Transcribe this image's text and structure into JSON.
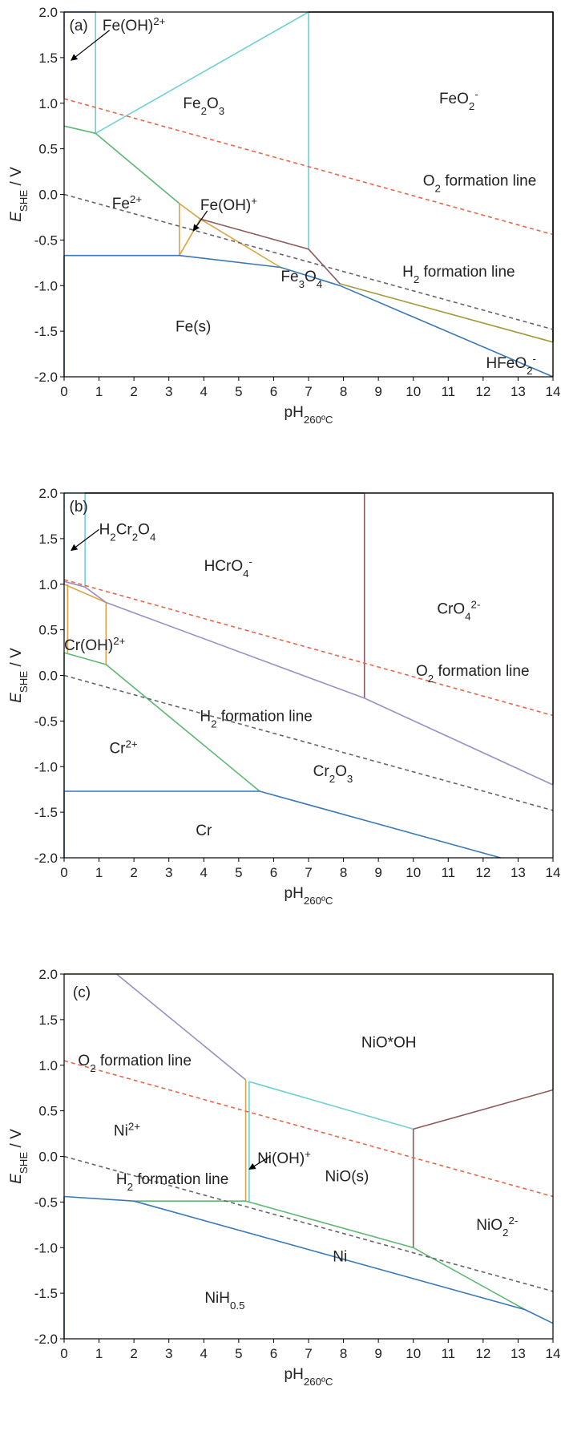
{
  "colors": {
    "blue": "#3a78b5",
    "green": "#5db873",
    "cyan": "#6fd0d3",
    "gold": "#d9a441",
    "brown": "#8b5a5a",
    "olive": "#a39a3c",
    "purple": "#9a8fc7",
    "o2": "#e8674a",
    "h2": "#666666"
  },
  "chart_data": [
    {
      "type": "line",
      "title": "",
      "panel_label": "(a)",
      "xlabel": "pH",
      "xlabel_sub": "260ºC",
      "ylabel": "E",
      "ylabel_sub": "SHE",
      "ylabel_unit": " / V",
      "xlim": [
        0,
        14
      ],
      "ylim": [
        -2,
        2
      ],
      "xticks": [
        "0",
        "1",
        "2",
        "3",
        "4",
        "5",
        "6",
        "7",
        "8",
        "9",
        "10",
        "11",
        "12",
        "13",
        "14"
      ],
      "yticks": [
        "-2.0",
        "-1.5",
        "-1.0",
        "-0.5",
        "0.0",
        "0.5",
        "1.0",
        "1.5",
        "2.0"
      ],
      "series": [
        {
          "color": "cyan",
          "x": [
            0,
            0.9,
            0.9,
            7.0,
            7.0
          ],
          "y": [
            2.0,
            2.0,
            0.67,
            2.0,
            -0.6
          ]
        },
        {
          "color": "purple",
          "x": [
            0,
            0,
            0.9
          ],
          "y": [
            1.05,
            2.0,
            2.0
          ]
        },
        {
          "color": "green",
          "x": [
            0,
            0.9,
            3.3,
            3.3
          ],
          "y": [
            0.75,
            0.67,
            -0.1,
            -0.1
          ]
        },
        {
          "color": "gold",
          "x": [
            3.3,
            3.3,
            3.9,
            6.2,
            6.2
          ],
          "y": [
            -0.1,
            -0.67,
            -0.27,
            -0.8,
            -0.8
          ]
        },
        {
          "color": "gold",
          "x": [
            3.3,
            3.9
          ],
          "y": [
            -0.1,
            -0.27
          ]
        },
        {
          "color": "brown",
          "x": [
            3.9,
            7.0,
            7.9
          ],
          "y": [
            -0.27,
            -0.6,
            -0.98
          ]
        },
        {
          "color": "olive",
          "x": [
            7.9,
            14.0,
            14.0
          ],
          "y": [
            -0.98,
            -1.62,
            -2.0
          ]
        },
        {
          "color": "blue",
          "x": [
            0,
            3.3,
            6.2,
            7.9,
            14.0
          ],
          "y": [
            -0.67,
            -0.67,
            -0.8,
            -1.0,
            -2.0
          ]
        },
        {
          "color": "blue",
          "x": [
            0,
            0
          ],
          "y": [
            -0.67,
            -2.0
          ]
        },
        {
          "color": "black",
          "x": [
            7.0,
            14.0,
            14.0
          ],
          "y": [
            2.0,
            2.0,
            -1.62
          ]
        },
        {
          "color": "o2",
          "dash": true,
          "x": [
            0,
            14
          ],
          "y": [
            1.05,
            -0.44
          ]
        },
        {
          "color": "h2",
          "dash": true,
          "x": [
            0,
            14
          ],
          "y": [
            0.0,
            -1.48
          ]
        }
      ],
      "labels": [
        {
          "parts": [
            {
              "t": "Fe"
            },
            {
              "t": "2",
              "s": "sub"
            },
            {
              "t": "O"
            },
            {
              "t": "3",
              "s": "sub"
            }
          ],
          "x": 4.0,
          "y": 1.0
        },
        {
          "parts": [
            {
              "t": "FeO"
            },
            {
              "t": "2",
              "s": "sub"
            },
            {
              "t": "-",
              "s": "sup"
            }
          ],
          "x": 11.3,
          "y": 1.05
        },
        {
          "parts": [
            {
              "t": "Fe"
            },
            {
              "t": "2+",
              "s": "sup"
            }
          ],
          "x": 1.8,
          "y": -0.1
        },
        {
          "parts": [
            {
              "t": "Fe(OH)"
            },
            {
              "t": "2+",
              "s": "sup"
            }
          ],
          "x": 1.1,
          "y": 1.85,
          "anchor": "start"
        },
        {
          "parts": [
            {
              "t": "Fe(OH)"
            },
            {
              "t": "+",
              "s": "sup"
            }
          ],
          "x": 3.9,
          "y": -0.12,
          "anchor": "start"
        },
        {
          "parts": [
            {
              "t": "Fe"
            },
            {
              "t": "3",
              "s": "sub"
            },
            {
              "t": "O"
            },
            {
              "t": "4",
              "s": "sub"
            }
          ],
          "x": 6.8,
          "y": -0.9
        },
        {
          "parts": [
            {
              "t": "Fe(s)"
            }
          ],
          "x": 3.7,
          "y": -1.45
        },
        {
          "parts": [
            {
              "t": "HFeO"
            },
            {
              "t": "2",
              "s": "sub"
            },
            {
              "t": "-",
              "s": "sup"
            }
          ],
          "x": 12.8,
          "y": -1.85
        },
        {
          "parts": [
            {
              "t": "O"
            },
            {
              "t": "2",
              "s": "sub"
            },
            {
              "t": " formation line"
            }
          ],
          "x": 11.9,
          "y": 0.15
        },
        {
          "parts": [
            {
              "t": "H"
            },
            {
              "t": "2",
              "s": "sub"
            },
            {
              "t": " formation line"
            }
          ],
          "x": 11.3,
          "y": -0.85
        }
      ],
      "arrows": [
        {
          "x1": 1.3,
          "y1": 1.8,
          "x2": 0.2,
          "y2": 1.47
        },
        {
          "x1": 4.1,
          "y1": -0.18,
          "x2": 3.7,
          "y2": -0.4
        }
      ]
    },
    {
      "type": "line",
      "title": "",
      "panel_label": "(b)",
      "xlabel": "pH",
      "xlabel_sub": "260ºC",
      "ylabel": "E",
      "ylabel_sub": "SHE",
      "ylabel_unit": " / V",
      "xlim": [
        0,
        14
      ],
      "ylim": [
        -2,
        2
      ],
      "xticks": [
        "0",
        "1",
        "2",
        "3",
        "4",
        "5",
        "6",
        "7",
        "8",
        "9",
        "10",
        "11",
        "12",
        "13",
        "14"
      ],
      "yticks": [
        "-2.0",
        "-1.5",
        "-1.0",
        "-0.5",
        "0.0",
        "0.5",
        "1.0",
        "1.5",
        "2.0"
      ],
      "series": [
        {
          "color": "cyan",
          "x": [
            0,
            0,
            0.6,
            0.6
          ],
          "y": [
            1.0,
            2.0,
            2.0,
            0.97
          ]
        },
        {
          "color": "black",
          "x": [
            0.6,
            8.6
          ],
          "y": [
            2.0,
            2.0
          ]
        },
        {
          "color": "brown",
          "x": [
            8.6,
            14.0,
            14.0
          ],
          "y": [
            2.0,
            2.0,
            -1.2
          ]
        },
        {
          "color": "brown",
          "x": [
            8.6,
            8.6
          ],
          "y": [
            2.0,
            -0.25
          ]
        },
        {
          "color": "gold",
          "x": [
            0,
            1.2,
            1.2
          ],
          "y": [
            1.0,
            0.8,
            0.12
          ]
        },
        {
          "color": "gold",
          "x": [
            0.1,
            0.1
          ],
          "y": [
            1.0,
            0.25
          ]
        },
        {
          "color": "purple",
          "x": [
            0,
            0.6,
            1.2,
            8.6,
            14.0
          ],
          "y": [
            1.03,
            0.97,
            0.8,
            -0.25,
            -1.2
          ]
        },
        {
          "color": "green",
          "x": [
            0,
            1.2,
            5.6
          ],
          "y": [
            0.25,
            0.12,
            -1.27
          ]
        },
        {
          "color": "green",
          "x": [
            0,
            0
          ],
          "y": [
            0.25,
            -1.27
          ]
        },
        {
          "color": "blue",
          "x": [
            0,
            5.6,
            12.5
          ],
          "y": [
            -1.27,
            -1.27,
            -2.0
          ]
        },
        {
          "color": "blue",
          "x": [
            0,
            0
          ],
          "y": [
            -1.27,
            -2.0
          ]
        },
        {
          "color": "o2",
          "dash": true,
          "x": [
            0,
            14
          ],
          "y": [
            1.05,
            -0.44
          ]
        },
        {
          "color": "h2",
          "dash": true,
          "x": [
            0,
            14
          ],
          "y": [
            0.0,
            -1.48
          ]
        }
      ],
      "labels": [
        {
          "parts": [
            {
              "t": "H"
            },
            {
              "t": "2",
              "s": "sub"
            },
            {
              "t": "Cr"
            },
            {
              "t": "2",
              "s": "sub"
            },
            {
              "t": "O"
            },
            {
              "t": "4",
              "s": "sub"
            }
          ],
          "x": 1.0,
          "y": 1.6,
          "anchor": "start"
        },
        {
          "parts": [
            {
              "t": "HCrO"
            },
            {
              "t": "4",
              "s": "sub"
            },
            {
              "t": "-",
              "s": "sup"
            }
          ],
          "x": 4.7,
          "y": 1.2
        },
        {
          "parts": [
            {
              "t": "CrO"
            },
            {
              "t": "4",
              "s": "sub"
            },
            {
              "t": "2-",
              "s": "sup"
            }
          ],
          "x": 11.3,
          "y": 0.73
        },
        {
          "parts": [
            {
              "t": "Cr(OH)"
            },
            {
              "t": "2+",
              "s": "sup"
            }
          ],
          "x": 0.0,
          "y": 0.33,
          "anchor": "start"
        },
        {
          "parts": [
            {
              "t": "O"
            },
            {
              "t": "2",
              "s": "sub"
            },
            {
              "t": " formation line"
            }
          ],
          "x": 11.7,
          "y": 0.05
        },
        {
          "parts": [
            {
              "t": "H"
            },
            {
              "t": "2",
              "s": "sub"
            },
            {
              "t": " formation line"
            }
          ],
          "x": 5.5,
          "y": -0.45
        },
        {
          "parts": [
            {
              "t": "Cr"
            },
            {
              "t": "2+",
              "s": "sup"
            }
          ],
          "x": 1.7,
          "y": -0.8
        },
        {
          "parts": [
            {
              "t": "Cr"
            },
            {
              "t": "2",
              "s": "sub"
            },
            {
              "t": "O"
            },
            {
              "t": "3",
              "s": "sub"
            }
          ],
          "x": 7.7,
          "y": -1.05
        },
        {
          "parts": [
            {
              "t": "Cr"
            }
          ],
          "x": 4.0,
          "y": -1.7
        }
      ],
      "arrows": [
        {
          "x1": 1.0,
          "y1": 1.6,
          "x2": 0.2,
          "y2": 1.37
        }
      ]
    },
    {
      "type": "line",
      "title": "",
      "panel_label": "(c)",
      "xlabel": "pH",
      "xlabel_sub": "260ºC",
      "ylabel": "E",
      "ylabel_sub": "SHE",
      "ylabel_unit": " / V",
      "xlim": [
        0,
        14
      ],
      "ylim": [
        -2,
        2
      ],
      "xticks": [
        "0",
        "1",
        "2",
        "3",
        "4",
        "5",
        "6",
        "7",
        "8",
        "9",
        "10",
        "11",
        "12",
        "13",
        "14"
      ],
      "yticks": [
        "-2.0",
        "-1.5",
        "-1.0",
        "-0.5",
        "0.0",
        "0.5",
        "1.0",
        "1.5",
        "2.0"
      ],
      "series": [
        {
          "color": "olive",
          "x": [
            0,
            14.0,
            14.0
          ],
          "y": [
            2.0,
            2.0,
            0.73
          ]
        },
        {
          "color": "purple",
          "x": [
            1.5,
            5.2
          ],
          "y": [
            2.0,
            0.84
          ]
        },
        {
          "color": "gold",
          "x": [
            5.2,
            5.2
          ],
          "y": [
            0.84,
            -0.5
          ]
        },
        {
          "color": "cyan",
          "x": [
            5.3,
            10.0,
            10.0
          ],
          "y": [
            0.82,
            0.3,
            0.3
          ]
        },
        {
          "color": "cyan",
          "x": [
            5.3,
            5.3
          ],
          "y": [
            0.82,
            -0.5
          ]
        },
        {
          "color": "brown",
          "x": [
            10.0,
            14.0
          ],
          "y": [
            0.3,
            0.73
          ]
        },
        {
          "color": "brown",
          "x": [
            10.0,
            10.0
          ],
          "y": [
            0.3,
            -1.0
          ]
        },
        {
          "color": "green",
          "x": [
            2.0,
            5.2,
            5.3,
            10.0,
            13.2
          ],
          "y": [
            -0.49,
            -0.49,
            -0.5,
            -1.0,
            -1.68
          ]
        },
        {
          "color": "blue",
          "x": [
            0,
            2.0,
            13.2,
            14.0
          ],
          "y": [
            -0.44,
            -0.49,
            -1.68,
            -1.83
          ]
        },
        {
          "color": "blue",
          "x": [
            0,
            0
          ],
          "y": [
            -0.44,
            -2.0
          ]
        },
        {
          "color": "o2",
          "dash": true,
          "x": [
            0,
            14
          ],
          "y": [
            1.05,
            -0.44
          ]
        },
        {
          "color": "h2",
          "dash": true,
          "x": [
            0,
            14
          ],
          "y": [
            0.0,
            -1.48
          ]
        }
      ],
      "labels": [
        {
          "parts": [
            {
              "t": "(c)"
            }
          ],
          "x": 0.25,
          "y": 1.8,
          "anchor": "start"
        },
        {
          "parts": [
            {
              "t": "NiO*OH"
            }
          ],
          "x": 9.3,
          "y": 1.25
        },
        {
          "parts": [
            {
              "t": "O"
            },
            {
              "t": "2",
              "s": "sub"
            },
            {
              "t": " formation line"
            }
          ],
          "x": 0.4,
          "y": 1.05,
          "anchor": "start"
        },
        {
          "parts": [
            {
              "t": "Ni"
            },
            {
              "t": "2+",
              "s": "sup"
            }
          ],
          "x": 1.8,
          "y": 0.28
        },
        {
          "parts": [
            {
              "t": "Ni(OH)"
            },
            {
              "t": "+",
              "s": "sup"
            }
          ],
          "x": 6.3,
          "y": -0.02
        },
        {
          "parts": [
            {
              "t": "H"
            },
            {
              "t": "2",
              "s": "sub"
            },
            {
              "t": " formation line"
            }
          ],
          "x": 3.1,
          "y": -0.25
        },
        {
          "parts": [
            {
              "t": "NiO(s)"
            }
          ],
          "x": 8.1,
          "y": -0.22
        },
        {
          "parts": [
            {
              "t": "NiO"
            },
            {
              "t": "2",
              "s": "sub"
            },
            {
              "t": "2-",
              "s": "sup"
            }
          ],
          "x": 12.4,
          "y": -0.75
        },
        {
          "parts": [
            {
              "t": "Ni"
            }
          ],
          "x": 7.9,
          "y": -1.1
        },
        {
          "parts": [
            {
              "t": "NiH"
            },
            {
              "t": "0.5",
              "s": "sub"
            }
          ],
          "x": 4.6,
          "y": -1.55
        }
      ],
      "arrows": [
        {
          "x1": 5.9,
          "y1": 0.0,
          "x2": 5.3,
          "y2": -0.14
        }
      ]
    }
  ]
}
